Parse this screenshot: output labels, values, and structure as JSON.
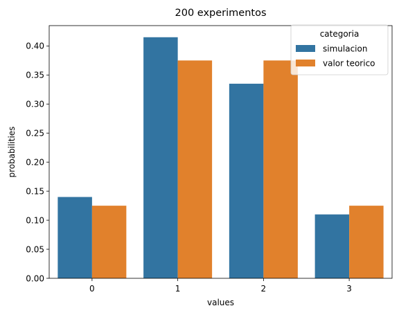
{
  "chart_data": {
    "type": "bar",
    "title": "200 experimentos",
    "xlabel": "values",
    "ylabel": "probabilities",
    "categories": [
      "0",
      "1",
      "2",
      "3"
    ],
    "series": [
      {
        "name": "simulacion",
        "values": [
          0.14,
          0.415,
          0.335,
          0.11
        ],
        "color": "#3274a1"
      },
      {
        "name": "valor teorico",
        "values": [
          0.125,
          0.375,
          0.375,
          0.125
        ],
        "color": "#e1812c"
      }
    ],
    "ylim": [
      0,
      0.435
    ],
    "yticks": [
      0.0,
      0.05,
      0.1,
      0.15,
      0.2,
      0.25,
      0.3,
      0.35,
      0.4
    ],
    "ytick_labels": [
      "0.00",
      "0.05",
      "0.10",
      "0.15",
      "0.20",
      "0.25",
      "0.30",
      "0.35",
      "0.40"
    ],
    "legend": {
      "title": "categoria",
      "placement": "top-right"
    },
    "grid": false
  }
}
